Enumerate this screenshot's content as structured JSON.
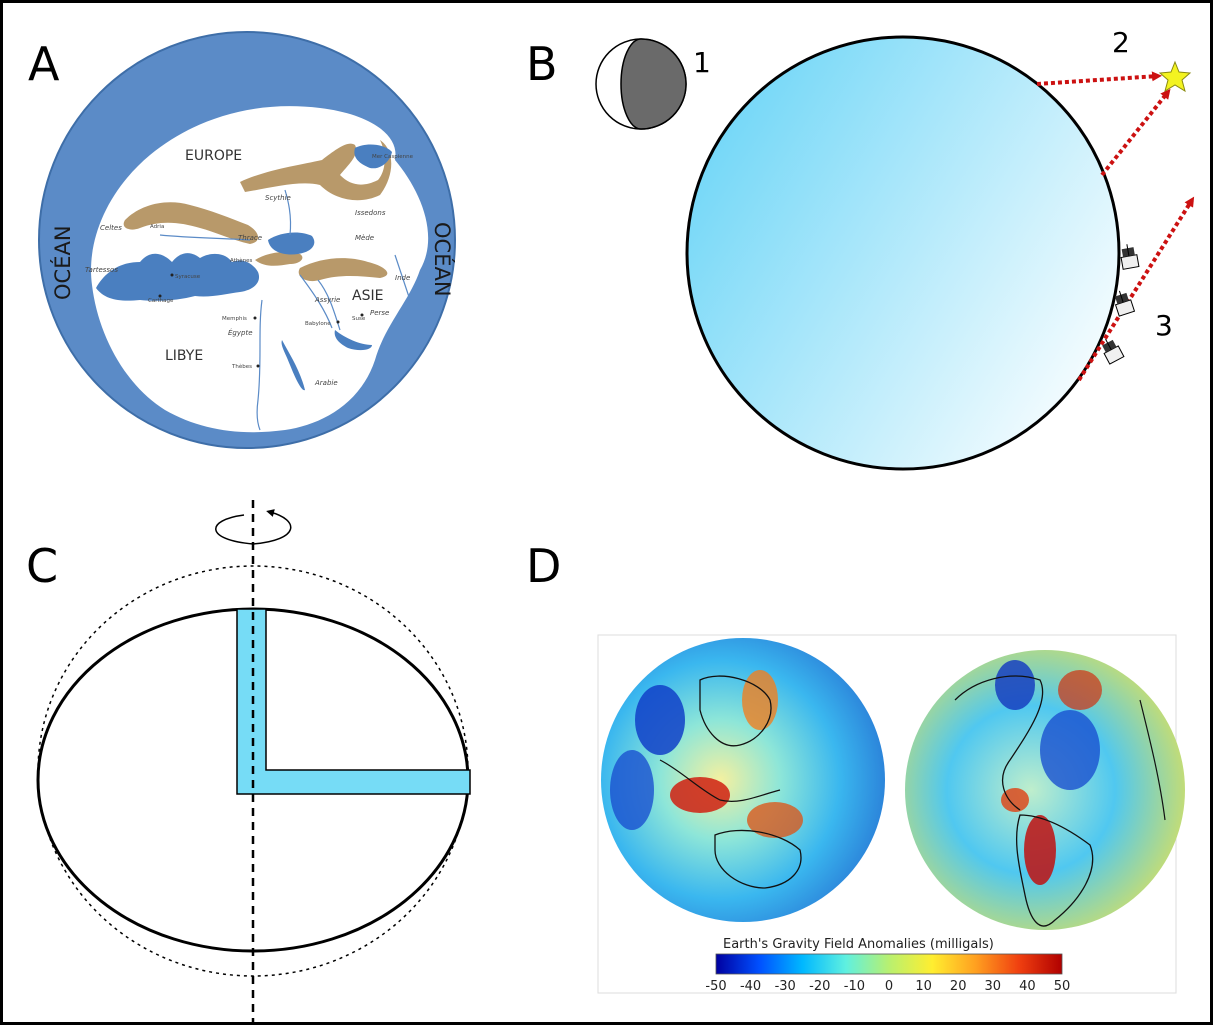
{
  "panels": {
    "a": {
      "letter": "A"
    },
    "b": {
      "letter": "B"
    },
    "c": {
      "letter": "C"
    },
    "d": {
      "letter": "D"
    }
  },
  "map": {
    "ocean_left": "OCÉAN",
    "ocean_right": "OCÉAN",
    "regions": [
      "EUROPE",
      "ASIE",
      "LIBYE"
    ],
    "places": [
      {
        "key": "celtes",
        "label": "Celtes"
      },
      {
        "key": "tartessos",
        "label": "Tartessos"
      },
      {
        "key": "scythie",
        "label": "Scythie"
      },
      {
        "key": "issedons",
        "label": "Issedons"
      },
      {
        "key": "mede",
        "label": "Mède"
      },
      {
        "key": "inde",
        "label": "Inde"
      },
      {
        "key": "assyrie",
        "label": "Assyrie"
      },
      {
        "key": "perse",
        "label": "Perse"
      },
      {
        "key": "arabie",
        "label": "Arabie"
      },
      {
        "key": "egypte",
        "label": "Égypte"
      },
      {
        "key": "thrace",
        "label": "Thrace"
      }
    ],
    "tiny_places": [
      {
        "key": "mer-caspienne",
        "label": "Mer Caspienne"
      },
      {
        "key": "adria",
        "label": "Adria"
      },
      {
        "key": "carthage",
        "label": "Carthage"
      },
      {
        "key": "memphis",
        "label": "Memphis"
      },
      {
        "key": "thebes",
        "label": "Thèbes"
      },
      {
        "key": "babylone",
        "label": "Babylone"
      },
      {
        "key": "suse",
        "label": "Suse"
      },
      {
        "key": "athenes",
        "label": "Athènes"
      },
      {
        "key": "syracuse",
        "label": "Syracuse"
      }
    ],
    "colors": {
      "ocean": "#5b8bc7",
      "land": "#ffffff",
      "mountains": "#b8996a",
      "water": "#4a7fc0"
    }
  },
  "panel_b": {
    "labels": [
      "1",
      "2",
      "3"
    ],
    "colors": {
      "earth_light": "#ffffff",
      "earth_dark": "#6fd6f7",
      "arrow": "#cc1111",
      "star": "#f3f321"
    }
  },
  "panel_c": {
    "colors": {
      "well": "#76dcf6"
    }
  },
  "panel_d": {
    "legend_title": "Earth's Gravity Field Anomalies (milligals)",
    "scale": {
      "min": -50,
      "max": 50,
      "ticks": [
        "-50",
        "-40",
        "-30",
        "-20",
        "-10",
        "0",
        "10",
        "20",
        "30",
        "40",
        "50"
      ]
    },
    "colormap": [
      "#0000a0",
      "#0050ff",
      "#00b8ff",
      "#5ff0e0",
      "#b8f070",
      "#ffee30",
      "#ffa020",
      "#f04010",
      "#b00000"
    ]
  }
}
